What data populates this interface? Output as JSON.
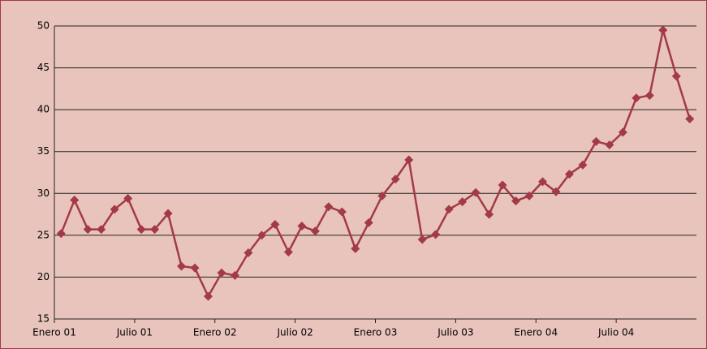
{
  "chart_data": {
    "type": "line",
    "categories": [
      "Enero 01",
      null,
      null,
      null,
      null,
      null,
      "Julio 01",
      null,
      null,
      null,
      null,
      null,
      "Enero 02",
      null,
      null,
      null,
      null,
      null,
      "Julio 02",
      null,
      null,
      null,
      null,
      null,
      "Enero 03",
      null,
      null,
      null,
      null,
      null,
      "Julio 03",
      null,
      null,
      null,
      null,
      null,
      "Enero 04",
      null,
      null,
      null,
      null,
      null,
      "Julio 04",
      null,
      null,
      null,
      null,
      null
    ],
    "series": [
      {
        "color": "#a23a48",
        "values": [
          25.2,
          29.2,
          25.7,
          25.7,
          28.1,
          29.4,
          25.7,
          25.7,
          27.6,
          21.3,
          21.1,
          17.7,
          20.5,
          20.2,
          22.9,
          25.0,
          26.3,
          23.0,
          26.1,
          25.5,
          28.4,
          27.8,
          23.4,
          26.5,
          29.7,
          31.7,
          34.0,
          24.5,
          25.1,
          28.1,
          29.0,
          30.1,
          27.5,
          31.0,
          29.1,
          29.7,
          31.4,
          30.2,
          32.3,
          33.4,
          36.2,
          35.8,
          37.3,
          41.4,
          41.7,
          49.5,
          44.0,
          38.9
        ]
      }
    ],
    "ylim": [
      15,
      50
    ],
    "yticks": [
      15,
      20,
      25,
      30,
      35,
      40,
      45,
      50
    ],
    "grid": true
  }
}
